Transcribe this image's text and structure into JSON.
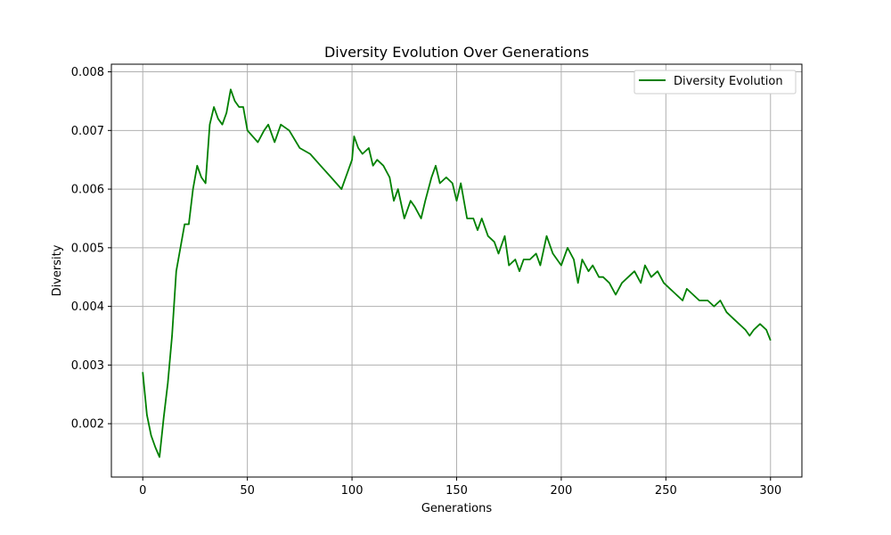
{
  "chart_data": {
    "type": "line",
    "title": "Diversity Evolution Over Generations",
    "xlabel": "Generations",
    "ylabel": "Diversity",
    "xlim": [
      -15,
      315
    ],
    "ylim": [
      0.00109,
      0.00813
    ],
    "xticks": [
      0,
      50,
      100,
      150,
      200,
      250,
      300
    ],
    "yticks": [
      0.002,
      0.003,
      0.004,
      0.005,
      0.006,
      0.007,
      0.008
    ],
    "xtick_labels": [
      "0",
      "50",
      "100",
      "150",
      "200",
      "250",
      "300"
    ],
    "ytick_labels": [
      "0.002",
      "0.003",
      "0.004",
      "0.005",
      "0.006",
      "0.007",
      "0.008"
    ],
    "grid": true,
    "legend": "top-right",
    "series": [
      {
        "name": "Diversity Evolution",
        "color": "#008000",
        "x": [
          0,
          2,
          4,
          6,
          8,
          10,
          12,
          14,
          16,
          18,
          20,
          22,
          24,
          26,
          28,
          30,
          32,
          34,
          36,
          38,
          40,
          42,
          44,
          46,
          48,
          50,
          55,
          58,
          60,
          63,
          66,
          70,
          75,
          80,
          85,
          90,
          95,
          100,
          101,
          103,
          105,
          108,
          110,
          112,
          115,
          118,
          120,
          122,
          125,
          128,
          130,
          133,
          135,
          138,
          140,
          142,
          145,
          148,
          150,
          152,
          155,
          158,
          160,
          162,
          165,
          168,
          170,
          173,
          175,
          178,
          180,
          182,
          185,
          188,
          190,
          193,
          196,
          198,
          200,
          203,
          206,
          208,
          210,
          213,
          215,
          218,
          220,
          223,
          226,
          229,
          232,
          235,
          238,
          240,
          243,
          246,
          249,
          252,
          255,
          258,
          260,
          263,
          266,
          270,
          273,
          276,
          279,
          282,
          285,
          288,
          290,
          292,
          295,
          298,
          300
        ],
        "y": [
          0.00288,
          0.00215,
          0.0018,
          0.0016,
          0.00143,
          0.0021,
          0.0027,
          0.0035,
          0.0046,
          0.005,
          0.0054,
          0.0054,
          0.006,
          0.0064,
          0.0062,
          0.0061,
          0.0071,
          0.0074,
          0.0072,
          0.0071,
          0.0073,
          0.0077,
          0.0075,
          0.0074,
          0.0074,
          0.007,
          0.0068,
          0.007,
          0.0071,
          0.0068,
          0.0071,
          0.007,
          0.0067,
          0.0066,
          0.0064,
          0.0062,
          0.006,
          0.0065,
          0.0069,
          0.0067,
          0.0066,
          0.0067,
          0.0064,
          0.0065,
          0.0064,
          0.0062,
          0.0058,
          0.006,
          0.0055,
          0.0058,
          0.0057,
          0.0055,
          0.0058,
          0.0062,
          0.0064,
          0.0061,
          0.0062,
          0.0061,
          0.0058,
          0.0061,
          0.0055,
          0.0055,
          0.0053,
          0.0055,
          0.0052,
          0.0051,
          0.0049,
          0.0052,
          0.0047,
          0.0048,
          0.0046,
          0.0048,
          0.0048,
          0.0049,
          0.0047,
          0.0052,
          0.0049,
          0.0048,
          0.0047,
          0.005,
          0.0048,
          0.0044,
          0.0048,
          0.0046,
          0.0047,
          0.0045,
          0.0045,
          0.0044,
          0.0042,
          0.0044,
          0.0045,
          0.0046,
          0.0044,
          0.0047,
          0.0045,
          0.0046,
          0.0044,
          0.0043,
          0.0042,
          0.0041,
          0.0043,
          0.0042,
          0.0041,
          0.0041,
          0.004,
          0.0041,
          0.0039,
          0.0038,
          0.0037,
          0.0036,
          0.0035,
          0.0036,
          0.0037,
          0.0036,
          0.00342
        ]
      }
    ]
  }
}
